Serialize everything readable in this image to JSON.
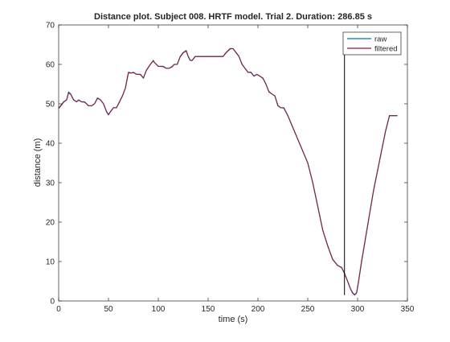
{
  "chart_data": {
    "type": "line",
    "title": "Distance plot. Subject 008. HRTF model. Trial 2. Duration: 286.85 s",
    "xlabel": "time (s)",
    "ylabel": "distance (m)",
    "xlim": [
      0,
      350
    ],
    "ylim": [
      0,
      70
    ],
    "xticks": [
      0,
      50,
      100,
      150,
      200,
      250,
      300,
      350
    ],
    "yticks": [
      0,
      10,
      20,
      30,
      40,
      50,
      60,
      70
    ],
    "grid": false,
    "legend_position": "top-right",
    "marker_line": {
      "x": 286.85,
      "y_range": [
        1.5,
        63.5
      ]
    },
    "series": [
      {
        "name": "raw",
        "color": "#0072bd",
        "x": [
          0,
          2,
          5,
          8,
          10,
          12,
          15,
          18,
          20,
          23,
          26,
          30,
          33,
          36,
          39,
          42,
          45,
          48,
          50,
          52,
          55,
          58,
          61,
          64,
          67,
          70,
          73,
          75,
          78,
          82,
          85,
          88,
          92,
          95,
          96,
          98,
          100,
          102,
          105,
          108,
          111,
          114,
          116,
          119,
          122,
          125,
          128,
          130,
          132,
          134,
          137,
          140,
          145,
          150,
          155,
          160,
          165,
          168,
          170,
          172,
          175,
          178,
          181,
          184,
          187,
          190,
          193,
          196,
          199,
          202,
          205,
          208,
          211,
          214,
          217,
          220,
          223,
          226,
          230,
          235,
          240,
          245,
          250,
          255,
          260,
          265,
          270,
          275,
          280,
          284,
          286.85,
          290,
          293,
          295,
          297,
          299,
          301,
          304,
          308,
          312,
          316,
          320,
          324,
          328,
          332,
          335,
          338,
          340
        ],
        "values": [
          49,
          49.5,
          50.5,
          51,
          53,
          52.5,
          51,
          50.5,
          51,
          50.5,
          50.5,
          49.5,
          49.5,
          50,
          51.5,
          51,
          50,
          48,
          47.2,
          48,
          49,
          49,
          50.5,
          52,
          54,
          58,
          57.8,
          58,
          57.5,
          57.5,
          56.5,
          58.5,
          60,
          61,
          60.5,
          60,
          59.5,
          59.5,
          59.5,
          59,
          59,
          59.5,
          60,
          60,
          62,
          63,
          63.5,
          62,
          61,
          61,
          62,
          62,
          62,
          62,
          62,
          62,
          62,
          63,
          63.5,
          64,
          64,
          63,
          62,
          60,
          59,
          58,
          58,
          57,
          57.5,
          57,
          56.5,
          55,
          53,
          52.5,
          52,
          49.5,
          49,
          49,
          47,
          44,
          41,
          38,
          35,
          30,
          24,
          18,
          14,
          10.5,
          9,
          8.5,
          7,
          5,
          3,
          2,
          1.5,
          2,
          5,
          10,
          16,
          22,
          28,
          33,
          38,
          43,
          47,
          47,
          47,
          47
        ]
      },
      {
        "name": "filtered",
        "color": "#a2142f",
        "x": [
          0,
          2,
          5,
          8,
          10,
          12,
          15,
          18,
          20,
          23,
          26,
          30,
          33,
          36,
          39,
          42,
          45,
          48,
          50,
          52,
          55,
          58,
          61,
          64,
          67,
          70,
          73,
          75,
          78,
          82,
          85,
          88,
          92,
          95,
          96,
          98,
          100,
          102,
          105,
          108,
          111,
          114,
          116,
          119,
          122,
          125,
          128,
          130,
          132,
          134,
          137,
          140,
          145,
          150,
          155,
          160,
          165,
          168,
          170,
          172,
          175,
          178,
          181,
          184,
          187,
          190,
          193,
          196,
          199,
          202,
          205,
          208,
          211,
          214,
          217,
          220,
          223,
          226,
          230,
          235,
          240,
          245,
          250,
          255,
          260,
          265,
          270,
          275,
          280,
          284,
          286.85,
          290,
          293,
          295,
          297,
          299,
          301,
          304,
          308,
          312,
          316,
          320,
          324,
          328,
          332,
          335,
          338,
          340
        ],
        "values": [
          48.8,
          49.4,
          50.4,
          51,
          52.8,
          52.4,
          51,
          50.5,
          50.9,
          50.5,
          50.4,
          49.5,
          49.5,
          50,
          51.4,
          51,
          50,
          48.1,
          47.3,
          48,
          49,
          49,
          50.4,
          52,
          54,
          57.8,
          57.8,
          57.9,
          57.5,
          57.4,
          56.6,
          58.4,
          60,
          60.9,
          60.5,
          60,
          59.5,
          59.5,
          59.4,
          59,
          59,
          59.4,
          60,
          60,
          61.9,
          62.9,
          63.4,
          62,
          61.1,
          61,
          62,
          62,
          62,
          62,
          62,
          62,
          62,
          62.9,
          63.4,
          63.9,
          64,
          63,
          62,
          60.1,
          59,
          58,
          57.9,
          57.1,
          57.4,
          57,
          56.5,
          55,
          53.1,
          52.5,
          52,
          49.6,
          49,
          48.9,
          47,
          44,
          41,
          38,
          35,
          30,
          24,
          18,
          14,
          10.6,
          9,
          8.4,
          7,
          5,
          3,
          2.1,
          1.6,
          2.1,
          5,
          10,
          16,
          22,
          28,
          33,
          38,
          43,
          47,
          47,
          47,
          47
        ]
      }
    ]
  }
}
